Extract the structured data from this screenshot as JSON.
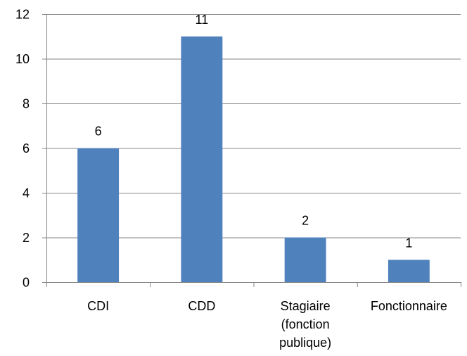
{
  "chart_data": {
    "type": "bar",
    "categories": [
      [
        "CDI"
      ],
      [
        "CDD"
      ],
      [
        "Stagiaire",
        "(fonction",
        "publique)"
      ],
      [
        "Fonctionnaire"
      ]
    ],
    "values": [
      6,
      11,
      2,
      1
    ],
    "data_labels": [
      "6",
      "11",
      "2",
      "1"
    ],
    "title": "",
    "xlabel": "",
    "ylabel": "",
    "ylim": [
      0,
      12
    ],
    "yticks": [
      0,
      2,
      4,
      6,
      8,
      10,
      12
    ],
    "grid": true,
    "legend": "none",
    "bar_color": "#4F81BD",
    "gridline_color": "#868686",
    "axis_color": "#868686"
  }
}
